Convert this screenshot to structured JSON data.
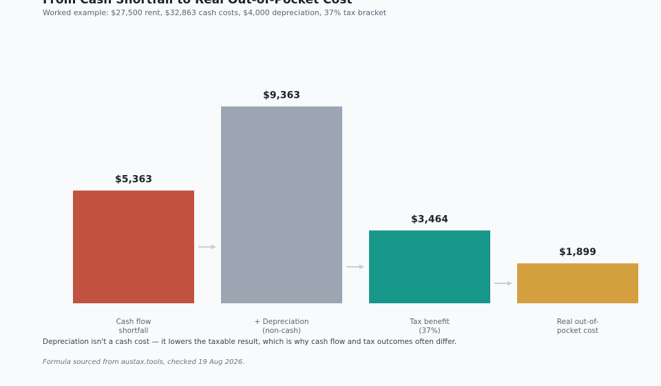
{
  "chart_data": {
    "type": "bar",
    "title": "From Cash Shortfall to Real Out-of-Pocket Cost",
    "subtitle": "Worked example: $27,500 rent, $32,863 cash costs, $4,000 depreciation, 37% tax bracket",
    "categories": [
      "Cash flow\nshortfall",
      "+ Depreciation\n(non-cash)",
      "Tax benefit\n(37%)",
      "Real out-of-\npocket cost"
    ],
    "values": [
      5363,
      9363,
      3464,
      1899
    ],
    "value_labels": [
      "$5,363",
      "$9,363",
      "$3,464",
      "$1,899"
    ],
    "colors": [
      "#c0523f",
      "#9ca6b2",
      "#17978a",
      "#d4a03f"
    ],
    "ylim": [
      0,
      10000
    ],
    "grid": false,
    "xlabel": "",
    "ylabel": ""
  },
  "footer": {
    "note": "Depreciation isn't a cash cost — it lowers the taxable result, which is why cash flow and tax outcomes often differ.",
    "source": "Formula sourced from austax.tools, checked 19 Aug 2026."
  }
}
